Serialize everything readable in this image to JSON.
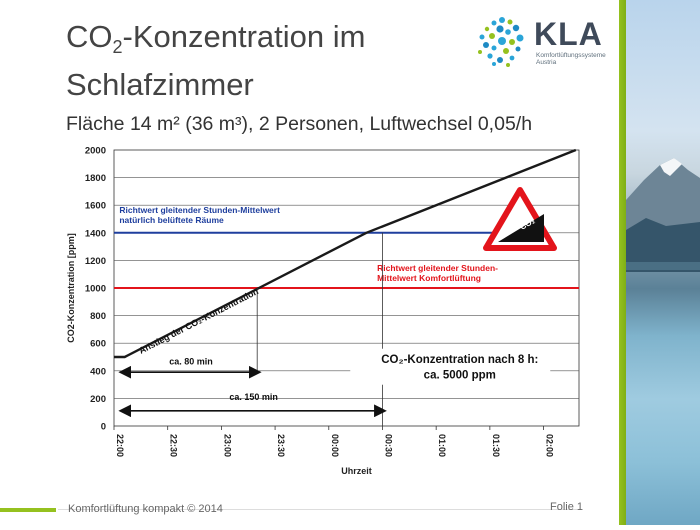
{
  "slide": {
    "title_main": "CO",
    "title_sub": "2",
    "title_rest": "-Konzentration im Schlafzimmer",
    "subtitle": "Fläche 14 m² (36 m³), 2 Personen, Luftwechsel 0,05/h"
  },
  "logo": {
    "word": "KLA",
    "tagline_line1": "Komfortlüftungssysteme",
    "tagline_line2": "Austria"
  },
  "footer": {
    "text": "Komfortlüftung kompakt  © 2014",
    "page": "Folie 1"
  },
  "colors": {
    "accent_green": "#95c11f",
    "line_blue": "#1f3f9e",
    "line_red": "#e3141b",
    "curve": "#1a1a1a"
  },
  "chart_data": {
    "type": "line",
    "x": [
      "22:00",
      "22:30",
      "23:00",
      "23:30",
      "00:00",
      "00:30",
      "01:00",
      "01:30",
      "02:00"
    ],
    "xlabel": "Uhrzeit",
    "ylabel": "CO2-Konzentration [ppm]",
    "ylim": [
      0,
      2000
    ],
    "yticks": [
      0,
      200,
      400,
      600,
      800,
      1000,
      1200,
      1400,
      1600,
      1800,
      2000
    ],
    "xlim_hours": [
      0,
      4.33
    ],
    "grid": "horizontal",
    "series": [
      {
        "points": [
          [
            0,
            500
          ],
          [
            0.1,
            500
          ],
          [
            2.35,
            1400
          ],
          [
            4.3,
            2000
          ]
        ],
        "color": "#1a1a1a"
      }
    ],
    "reference_lines": [
      {
        "y": 1400,
        "color": "#1f3f9e",
        "label_line1": "Richtwert gleitender Stunden-Mittelwert",
        "label_line2": "natürlich belüftete Räume"
      },
      {
        "y": 1000,
        "color": "#e3141b",
        "label_line1": "Richtwert gleitender Stunden-",
        "label_line2": "Mittelwert Komfortlüftung"
      }
    ],
    "annotations": {
      "slope_label": "Anstieg der CO₂-Konzentration",
      "arrow1_label": "ca. 80 min",
      "arrow1_from": "22:00",
      "arrow1_to": "23:20",
      "arrow2_label": "ca. 150 min",
      "arrow2_from": "22:00",
      "arrow2_to": "00:30",
      "result_line1": "CO₂-Konzentration nach 8 h:",
      "result_line2": "ca. 5000 ppm",
      "sign_label": "CO₂"
    }
  }
}
